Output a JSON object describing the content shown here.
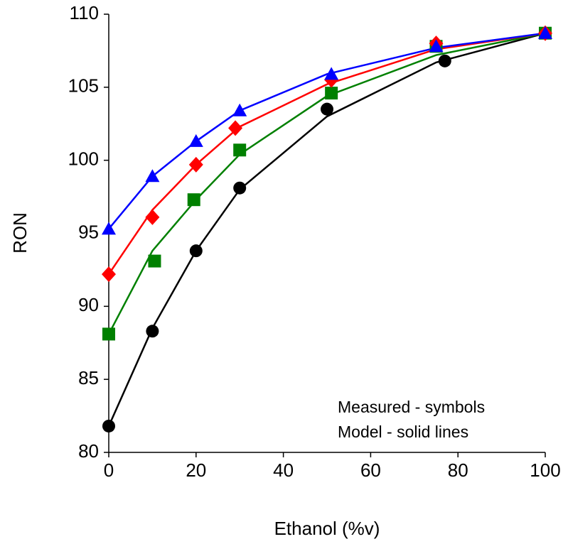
{
  "chart_data": {
    "type": "line",
    "x_label": "Ethanol (%v)",
    "y_label": "RON",
    "annotations": [
      "Measured - symbols",
      "Model - solid lines"
    ],
    "xlim": [
      0,
      100
    ],
    "xticks": [
      0,
      20,
      40,
      60,
      80,
      100
    ],
    "ylim": [
      80,
      110
    ],
    "yticks": [
      80,
      85,
      90,
      95,
      100,
      105,
      110
    ],
    "grid": false,
    "series": [
      {
        "color": "#0000ff",
        "marker": "triangle",
        "x": [
          0,
          10,
          20,
          30,
          51,
          75,
          100
        ],
        "values": [
          95.3,
          98.9,
          101.3,
          103.4,
          105.9,
          107.8,
          108.7
        ],
        "model_x": [
          0,
          10,
          20,
          30,
          50,
          75,
          100
        ],
        "model_values": [
          95.3,
          98.9,
          101.3,
          103.4,
          105.9,
          107.7,
          108.7
        ]
      },
      {
        "color": "#ff0000",
        "marker": "diamond",
        "x": [
          0,
          10,
          20,
          29,
          51,
          75,
          100
        ],
        "values": [
          92.2,
          96.1,
          99.7,
          102.2,
          105.5,
          108.0,
          108.7
        ],
        "model_x": [
          0,
          10,
          20,
          30,
          50,
          75,
          100
        ],
        "model_values": [
          92.2,
          96.6,
          99.7,
          102.3,
          105.2,
          107.6,
          108.7
        ]
      },
      {
        "color": "#008000",
        "marker": "square",
        "x": [
          0,
          10.5,
          19.5,
          30,
          51,
          75,
          100
        ],
        "values": [
          88.1,
          93.1,
          97.3,
          100.7,
          104.6,
          107.8,
          108.7
        ],
        "model_x": [
          0,
          10,
          20,
          30,
          50,
          75,
          100
        ],
        "model_values": [
          88.1,
          93.8,
          97.3,
          100.4,
          104.4,
          107.2,
          108.7
        ]
      },
      {
        "color": "#000000",
        "marker": "circle",
        "x": [
          0,
          10,
          20,
          30,
          50,
          77,
          100
        ],
        "values": [
          81.8,
          88.3,
          93.8,
          98.1,
          103.5,
          106.8,
          108.7
        ],
        "model_x": [
          0,
          10,
          20,
          30,
          50,
          75,
          100
        ],
        "model_values": [
          81.8,
          88.5,
          93.8,
          98.0,
          103.0,
          106.7,
          108.7
        ]
      }
    ]
  }
}
